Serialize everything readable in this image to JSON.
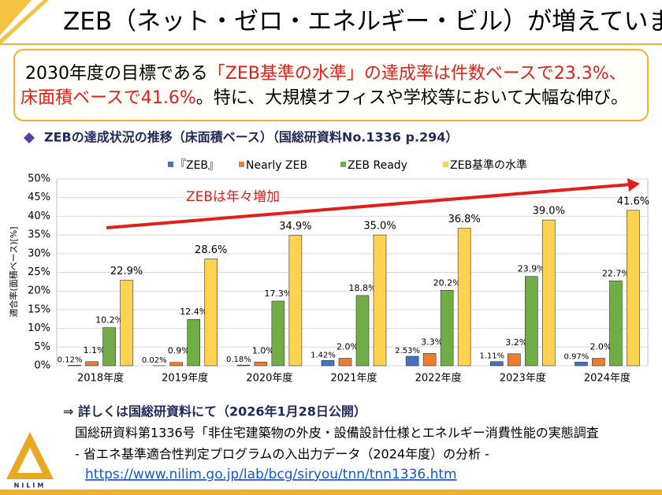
{
  "header": {
    "title": "ZEB（ネット・ゼロ・エネルギー・ビル）が増えています"
  },
  "summary": {
    "segments": [
      {
        "text": "2030年度の目標である",
        "color": "#000000"
      },
      {
        "text": "「ZEB基準の水準」の達成率は件数ベースで23.3%、",
        "color": "#e0201b"
      },
      {
        "text": "床面積ベースで41.6%",
        "color": "#e0201b"
      },
      {
        "text": "。特に、大規模オフィスや学校等において大幅な伸び。",
        "color": "#000000"
      }
    ]
  },
  "chart_data": {
    "type": "bar",
    "title": "ZEBの達成状況の推移（床面積ベース）（国総研資料No.1336 p.294）",
    "y_label": "適合率(面積ベース)[%]",
    "annotation": "ZEBは年々増加",
    "categories": [
      "2018年度",
      "2019年度",
      "2020年度",
      "2021年度",
      "2022年度",
      "2023年度",
      "2024年度"
    ],
    "series": [
      {
        "name": "『ZEB』",
        "color": "#4472c4",
        "values": [
          0.12,
          0.02,
          0.18,
          1.42,
          2.53,
          1.11,
          0.97
        ],
        "value_labels": [
          "0.12%",
          "0.02%",
          "0.18%",
          "1.42%",
          "2.53%",
          "1.11%",
          "0.97%"
        ]
      },
      {
        "name": "Nearly ZEB",
        "color": "#ed7d31",
        "values": [
          1.1,
          0.9,
          1.0,
          2.0,
          3.3,
          3.2,
          2.0
        ],
        "value_labels": [
          "1.1%",
          "0.9%",
          "1.0%",
          "2.0%",
          "3.3%",
          "3.2%",
          "2.0%"
        ]
      },
      {
        "name": "ZEB Ready",
        "color": "#70ad47",
        "values": [
          10.2,
          12.4,
          17.3,
          18.8,
          20.2,
          23.9,
          22.7
        ],
        "value_labels": [
          "10.2%",
          "12.4%",
          "17.3%",
          "18.8%",
          "20.2%",
          "23.9%",
          "22.7%"
        ]
      },
      {
        "name": "ZEB基準の水準",
        "color": "#ffd34f",
        "values": [
          22.9,
          28.6,
          34.9,
          35.0,
          36.8,
          39.0,
          41.6
        ],
        "value_labels": [
          "22.9%",
          "28.6%",
          "34.9%",
          "35.0%",
          "36.8%",
          "39.0%",
          "41.6%"
        ]
      }
    ],
    "ylim": [
      0,
      50
    ],
    "yticks": [
      {
        "value": 0,
        "label": "0%"
      },
      {
        "value": 5,
        "label": "5%"
      },
      {
        "value": 10,
        "label": "10%"
      },
      {
        "value": 15,
        "label": "15%"
      },
      {
        "value": 20,
        "label": "20%"
      },
      {
        "value": 25,
        "label": "25%"
      },
      {
        "value": 30,
        "label": "30%"
      },
      {
        "value": 35,
        "label": "35%"
      },
      {
        "value": 40,
        "label": "40%"
      },
      {
        "value": 45,
        "label": "45%"
      },
      {
        "value": 50,
        "label": "50%"
      }
    ],
    "grid": true
  },
  "footer": {
    "heading": "⇒ 詳しくは国総研資料にて（2026年1月28日公開）",
    "line1": "国総研資料第1336号「非住宅建築物の外皮・設備設計仕様とエネルギー消費性能の実態調査",
    "line2": "- 省エネ基準適合性判定プログラムの入出力データ（2024年度）の分析 -",
    "url": "https://www.nilim.go.jp/lab/bcg/siryou/tnn/tnn1336.htm",
    "logo": "NILIM"
  }
}
